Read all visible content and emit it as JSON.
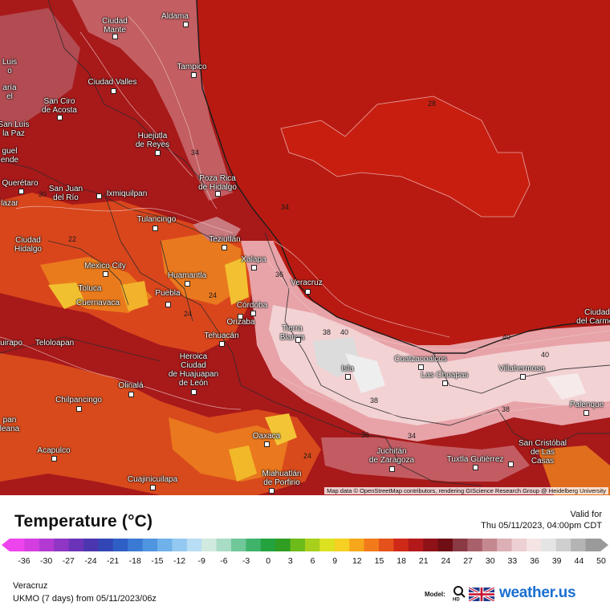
{
  "map": {
    "cities": [
      {
        "id": "aldama",
        "label": "Aldama"
      },
      {
        "id": "ciudad-mante",
        "label": "Ciudad\nMante"
      },
      {
        "id": "tampico",
        "label": "Tampico"
      },
      {
        "id": "ciudad-valles",
        "label": "Ciudad Valles"
      },
      {
        "id": "san-ciro",
        "label": "San Ciro\nde Acosta"
      },
      {
        "id": "luis",
        "label": "Luis\no"
      },
      {
        "id": "maria",
        "label": "aría\nel"
      },
      {
        "id": "san-luis-paz",
        "label": "San Luis\nla Paz"
      },
      {
        "id": "miguel-allende",
        "label": "guel\nende"
      },
      {
        "id": "huejutla",
        "label": "Huejutla\nde Reyes"
      },
      {
        "id": "poza-rica",
        "label": "Poza Rica\nde Hidalgo"
      },
      {
        "id": "queretaro",
        "label": "Querétaro"
      },
      {
        "id": "san-juan-rio",
        "label": "San Juan\ndel Río"
      },
      {
        "id": "ixmiquilpan",
        "label": "Ixmiquilpan"
      },
      {
        "id": "lazar",
        "label": "lazar"
      },
      {
        "id": "tulancingo",
        "label": "Tulancingo"
      },
      {
        "id": "teziutlan",
        "label": "Teziutlán"
      },
      {
        "id": "ciudad-hidalgo",
        "label": "Ciudad\nHidalgo"
      },
      {
        "id": "xalapa",
        "label": "Xalapa"
      },
      {
        "id": "mexico-city",
        "label": "Mexico City"
      },
      {
        "id": "toluca",
        "label": "Toluca"
      },
      {
        "id": "cuernavaca",
        "label": "Cuernavaca"
      },
      {
        "id": "huamantla",
        "label": "Huamantla"
      },
      {
        "id": "puebla",
        "label": "Puebla"
      },
      {
        "id": "veracruz",
        "label": "Veracruz"
      },
      {
        "id": "cordoba",
        "label": "Córdoba"
      },
      {
        "id": "orizaba",
        "label": "Orizaba"
      },
      {
        "id": "tehuacan",
        "label": "Tehuacán"
      },
      {
        "id": "tierra-blanca",
        "label": "Tierra\nBlanca"
      },
      {
        "id": "ciudad-carmen",
        "label": "Ciudad\ndel Carmen"
      },
      {
        "id": "teloloapan",
        "label": "Teloloapan"
      },
      {
        "id": "uirapo",
        "label": "uirapo"
      },
      {
        "id": "huajuapan",
        "label": "Heroica\nCiudad\nde Huajuapan\nde León"
      },
      {
        "id": "olinala",
        "label": "Olinalá"
      },
      {
        "id": "coatzacoalcos",
        "label": "Coatzacoalcos"
      },
      {
        "id": "las-choapas",
        "label": "Las Choapas"
      },
      {
        "id": "villahermosa",
        "label": "Villahermosa"
      },
      {
        "id": "isla",
        "label": "Isla"
      },
      {
        "id": "chilpancingo",
        "label": "Chilpancingo"
      },
      {
        "id": "palenque",
        "label": "Palenque"
      },
      {
        "id": "zihuatanejo",
        "label": "pan\nleana"
      },
      {
        "id": "oaxaca",
        "label": "Oaxaca"
      },
      {
        "id": "san-cristobal",
        "label": "San Cristóbal\nde Las\nCasas"
      },
      {
        "id": "acapulco",
        "label": "Acapulco"
      },
      {
        "id": "juchitan",
        "label": "Juchitán\nde Zaragoza"
      },
      {
        "id": "tuxtla",
        "label": "Tuxtla Gutiérrez"
      },
      {
        "id": "cuajinicuilapa",
        "label": "Cuajinicuilapa"
      },
      {
        "id": "miahuatlan",
        "label": "Miahuatlán\nde Porfirio"
      }
    ],
    "isotherm_labels": [
      "28",
      "34",
      "34",
      "30",
      "22",
      "24",
      "24",
      "36",
      "38",
      "40",
      "40",
      "38",
      "38",
      "36",
      "34",
      "40",
      "24"
    ],
    "attribution": "Map data © OpenStreetMap contributors, rendering GIScience Research Group @ Heidelberg University"
  },
  "legend": {
    "title": "Temperature (°C)",
    "valid_label": "Valid for",
    "valid_time": "Thu 05/11/2023, 04:00pm CDT",
    "ticks": [
      "-36",
      "-30",
      "-27",
      "-24",
      "-21",
      "-18",
      "-15",
      "-12",
      "-9",
      "-6",
      "-3",
      "0",
      "3",
      "6",
      "9",
      "12",
      "15",
      "18",
      "21",
      "24",
      "27",
      "30",
      "33",
      "36",
      "39",
      "44",
      "50"
    ],
    "location": "Veracruz",
    "model_run": "UKMO (7 days) from 05/11/2023/06z",
    "model_label": "Model:",
    "brand": "weather.us",
    "colors": {
      "sea": "#b81a12",
      "warm_land": "#e0501c",
      "hot_land": "#f5a020",
      "cool_highland": "#8b1515",
      "very_hot": "#f2c8cc",
      "extreme": "#e8e8e8"
    }
  }
}
